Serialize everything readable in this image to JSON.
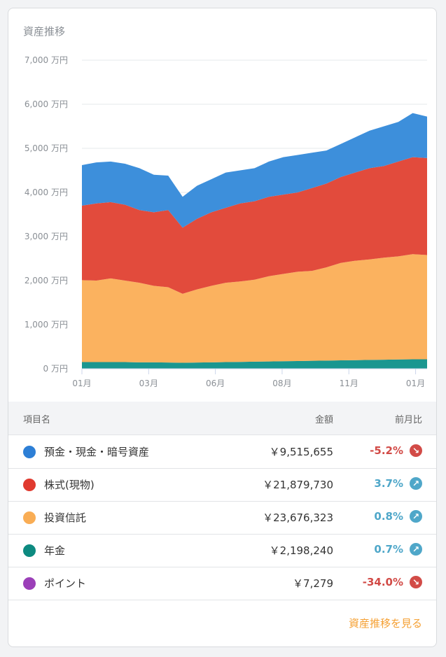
{
  "card": {
    "title": "資産推移",
    "link": "資産推移を見る"
  },
  "chart_data": {
    "type": "area",
    "stacked": true,
    "title": "資産推移",
    "ylim": [
      0,
      7000
    ],
    "unit": "万円",
    "y_ticks": [
      "0 万円",
      "1,000 万円",
      "2,000 万円",
      "3,000 万円",
      "4,000 万円",
      "5,000 万円",
      "6,000 万円",
      "7,000 万円"
    ],
    "x_ticks": [
      {
        "label": "01月",
        "at": 0
      },
      {
        "label": "03月",
        "at": 4.64
      },
      {
        "label": "06月",
        "at": 9.28
      },
      {
        "label": "08月",
        "at": 13.92
      },
      {
        "label": "11月",
        "at": 18.56
      },
      {
        "label": "01月",
        "at": 23.2
      }
    ],
    "series": [
      {
        "name": "年金",
        "color": "#1a9690",
        "values": [
          150,
          150,
          150,
          150,
          145,
          145,
          140,
          135,
          140,
          145,
          150,
          155,
          160,
          165,
          170,
          175,
          180,
          185,
          190,
          195,
          200,
          205,
          210,
          215,
          215
        ]
      },
      {
        "name": "投資信託",
        "color": "#fbb25f",
        "values": [
          1860,
          1850,
          1900,
          1850,
          1805,
          1735,
          1710,
          1565,
          1660,
          1735,
          1800,
          1825,
          1860,
          1935,
          1980,
          2025,
          2040,
          2115,
          2210,
          2255,
          2280,
          2315,
          2340,
          2385,
          2365
        ]
      },
      {
        "name": "株式(現物)",
        "color": "#e24b3c",
        "values": [
          1690,
          1750,
          1730,
          1720,
          1650,
          1670,
          1750,
          1500,
          1600,
          1670,
          1700,
          1770,
          1780,
          1800,
          1800,
          1800,
          1880,
          1900,
          1950,
          2000,
          2070,
          2080,
          2150,
          2200,
          2200
        ]
      },
      {
        "name": "預金・現金・暗号資産",
        "color": "#3d8fdb",
        "values": [
          920,
          930,
          920,
          930,
          950,
          850,
          780,
          700,
          750,
          750,
          800,
          750,
          750,
          800,
          850,
          850,
          800,
          750,
          750,
          800,
          850,
          900,
          900,
          1000,
          940
        ]
      }
    ]
  },
  "table": {
    "headers": {
      "name": "項目名",
      "amount": "金額",
      "change": "前月比"
    },
    "rows": [
      {
        "name": "預金・現金・暗号資産",
        "color": "#2d7fd6",
        "amount": "￥9,515,655",
        "change": "-5.2%",
        "dir": "down"
      },
      {
        "name": "株式(現物)",
        "color": "#e03a2f",
        "amount": "￥21,879,730",
        "change": "3.7%",
        "dir": "up"
      },
      {
        "name": "投資信託",
        "color": "#f9ad55",
        "amount": "￥23,676,323",
        "change": "0.8%",
        "dir": "up"
      },
      {
        "name": "年金",
        "color": "#0d8a80",
        "amount": "￥2,198,240",
        "change": "0.7%",
        "dir": "up"
      },
      {
        "name": "ポイント",
        "color": "#9b3fb8",
        "amount": "￥7,279",
        "change": "-34.0%",
        "dir": "down"
      }
    ]
  },
  "colors": {
    "up": "#4fa7c9",
    "down": "#d24b47"
  }
}
